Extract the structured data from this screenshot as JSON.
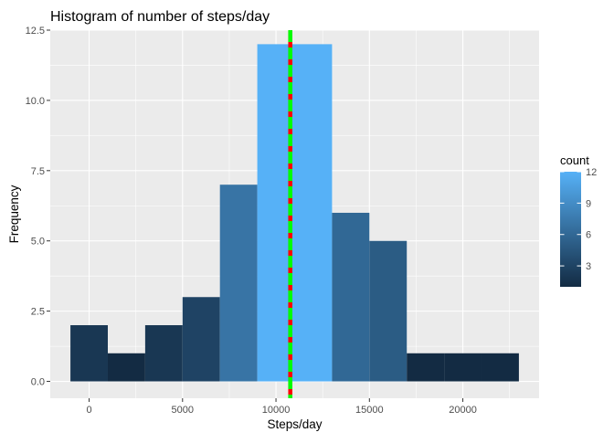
{
  "chart_data": {
    "type": "bar",
    "title": "Histogram of number of steps/day",
    "xlabel": "Steps/day",
    "ylabel": "Frequency",
    "xlim": [
      -1000,
      23000
    ],
    "ylim": [
      -0.6,
      12.5
    ],
    "x_ticks": [
      0,
      5000,
      10000,
      15000,
      20000
    ],
    "x_tick_labels": [
      "0",
      "5000",
      "10000",
      "15000",
      "20000"
    ],
    "y_ticks": [
      0,
      2.5,
      5,
      7.5,
      10,
      12.5
    ],
    "y_tick_labels": [
      "0.0",
      "2.5",
      "5.0",
      "7.5",
      "10.0",
      "12.5"
    ],
    "bin_width": 2000,
    "bins": [
      {
        "start": -1000,
        "end": 1000,
        "count": 2
      },
      {
        "start": 1000,
        "end": 3000,
        "count": 1
      },
      {
        "start": 3000,
        "end": 5000,
        "count": 2
      },
      {
        "start": 5000,
        "end": 7000,
        "count": 3
      },
      {
        "start": 7000,
        "end": 9000,
        "count": 7
      },
      {
        "start": 9000,
        "end": 11000,
        "count": 12
      },
      {
        "start": 11000,
        "end": 13000,
        "count": 12
      },
      {
        "start": 13000,
        "end": 15000,
        "count": 6
      },
      {
        "start": 15000,
        "end": 17000,
        "count": 5
      },
      {
        "start": 17000,
        "end": 19000,
        "count": 1
      },
      {
        "start": 19000,
        "end": 21000,
        "count": 1
      },
      {
        "start": 21000,
        "end": 23000,
        "count": 1
      }
    ],
    "vlines": [
      {
        "x": 10766,
        "color": "#ff0000",
        "style": "solid"
      },
      {
        "x": 10766,
        "color": "#00ff00",
        "style": "dashed"
      }
    ],
    "legend": {
      "title": "count",
      "position": "right",
      "ticks": [
        3,
        6,
        9,
        12
      ],
      "tick_labels": [
        "3",
        "6",
        "9",
        "12"
      ],
      "range": [
        1,
        12
      ]
    },
    "colors": {
      "low": "#132b43",
      "high": "#56b1f7",
      "panel_bg": "#ebebeb",
      "grid": "#ffffff"
    },
    "grid": true
  }
}
